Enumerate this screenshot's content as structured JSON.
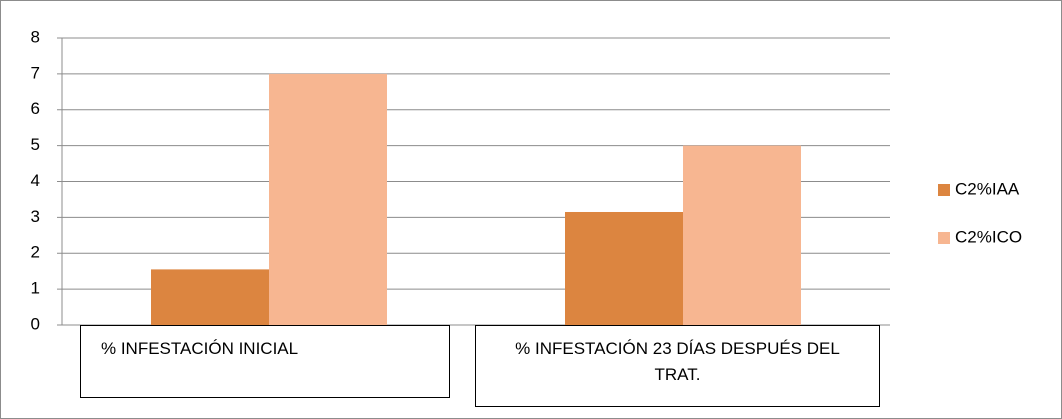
{
  "chart_data": {
    "type": "bar",
    "categories": [
      "% INFESTACIÓN INICIAL",
      "% INFESTACIÓN 23 DÍAS DESPUÉS DEL TRAT."
    ],
    "series": [
      {
        "name": "C2%IAA",
        "color": "#dc8540",
        "values": [
          1.55,
          3.15
        ]
      },
      {
        "name": "C2%ICO",
        "color": "#f7b691",
        "values": [
          7,
          5
        ]
      }
    ],
    "ylim": [
      0,
      8
    ],
    "yticks": [
      0,
      1,
      2,
      3,
      4,
      5,
      6,
      7,
      8
    ],
    "grid": true,
    "legend": "right"
  }
}
